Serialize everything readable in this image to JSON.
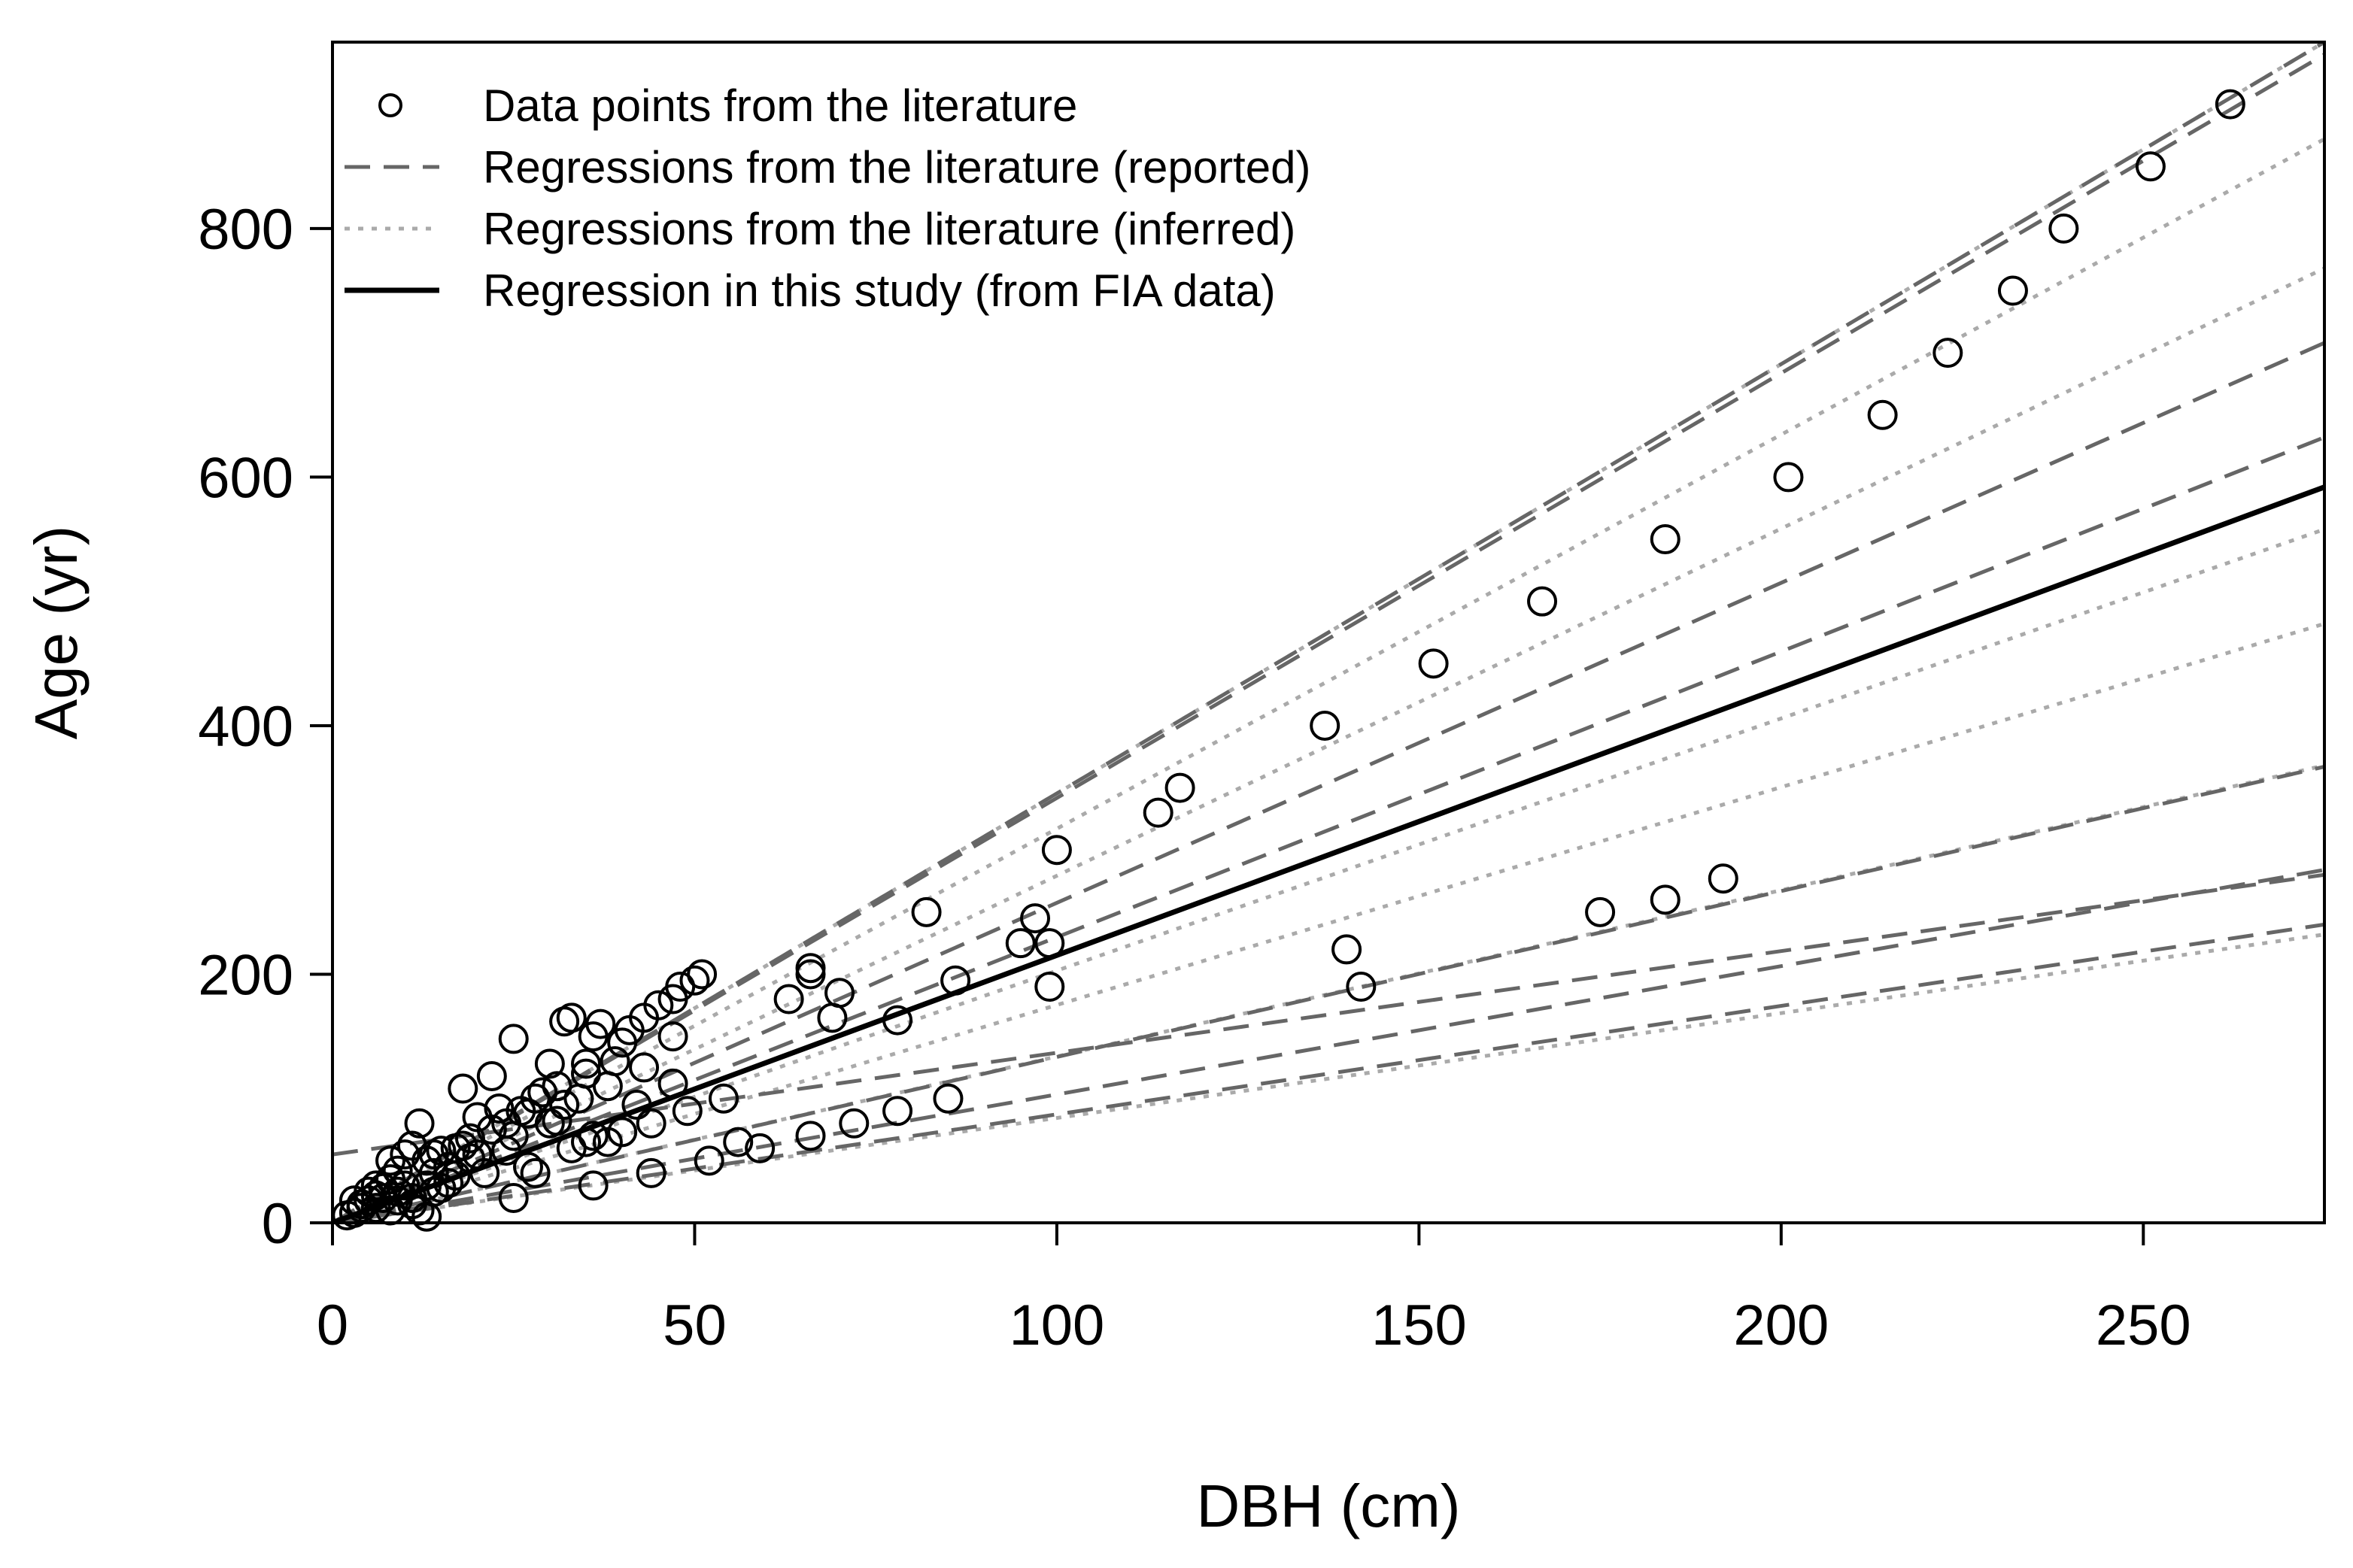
{
  "chart_data": {
    "type": "scatter",
    "xlabel": "DBH (cm)",
    "ylabel": "Age (yr)",
    "xlim": [
      0,
      275
    ],
    "ylim": [
      0,
      950
    ],
    "x_ticks": [
      0,
      50,
      100,
      150,
      200,
      250
    ],
    "y_ticks": [
      0,
      200,
      400,
      600,
      800
    ],
    "grid": false,
    "legend_position": "top-left",
    "legend": [
      {
        "label": "Data points from the literature",
        "style": "circle",
        "color": "#000000"
      },
      {
        "label": "Regressions from the literature (reported)",
        "style": "dashed",
        "color": "#666666"
      },
      {
        "label": "Regressions from the literature (inferred)",
        "style": "dotted",
        "color": "#aaaaaa"
      },
      {
        "label": "Regression in this study (from FIA data)",
        "style": "solid",
        "color": "#000000"
      }
    ],
    "points": [
      [
        262,
        900
      ],
      [
        251,
        850
      ],
      [
        239,
        800
      ],
      [
        232,
        750
      ],
      [
        223,
        700
      ],
      [
        214,
        650
      ],
      [
        201,
        600
      ],
      [
        184,
        550
      ],
      [
        167,
        500
      ],
      [
        152,
        450
      ],
      [
        137,
        400
      ],
      [
        117,
        350
      ],
      [
        114,
        330
      ],
      [
        100,
        300
      ],
      [
        82,
        250
      ],
      [
        97,
        245
      ],
      [
        95,
        225
      ],
      [
        99,
        225
      ],
      [
        99,
        190
      ],
      [
        86,
        195
      ],
      [
        66,
        205
      ],
      [
        66,
        200
      ],
      [
        63,
        180
      ],
      [
        70,
        185
      ],
      [
        69,
        165
      ],
      [
        78,
        163
      ],
      [
        54,
        100
      ],
      [
        51,
        200
      ],
      [
        50,
        195
      ],
      [
        48,
        190
      ],
      [
        47,
        180
      ],
      [
        45,
        175
      ],
      [
        43,
        165
      ],
      [
        41,
        155
      ],
      [
        40,
        145
      ],
      [
        47,
        150
      ],
      [
        47,
        112
      ],
      [
        49,
        90
      ],
      [
        44,
        80
      ],
      [
        85,
        100
      ],
      [
        78,
        90
      ],
      [
        72,
        80
      ],
      [
        66,
        70
      ],
      [
        59,
        60
      ],
      [
        56,
        65
      ],
      [
        52,
        50
      ],
      [
        44,
        40
      ],
      [
        36,
        30
      ],
      [
        25,
        20
      ],
      [
        175,
        250
      ],
      [
        184,
        260
      ],
      [
        192,
        277
      ],
      [
        140,
        220
      ],
      [
        142,
        190
      ],
      [
        33,
        165
      ],
      [
        32,
        162
      ],
      [
        37,
        160
      ],
      [
        36,
        150
      ],
      [
        25,
        148
      ],
      [
        18,
        108
      ],
      [
        22,
        118
      ],
      [
        30,
        128
      ],
      [
        35,
        128
      ],
      [
        35,
        120
      ],
      [
        31,
        110
      ],
      [
        29,
        105
      ],
      [
        28,
        100
      ],
      [
        32,
        95
      ],
      [
        27,
        88
      ],
      [
        26,
        90
      ],
      [
        20,
        85
      ],
      [
        22,
        75
      ],
      [
        19,
        68
      ],
      [
        18,
        62
      ],
      [
        15,
        58
      ],
      [
        14,
        55
      ],
      [
        13,
        50
      ],
      [
        12,
        80
      ],
      [
        11,
        62
      ],
      [
        10,
        55
      ],
      [
        8,
        50
      ],
      [
        9,
        42
      ],
      [
        8,
        35
      ],
      [
        7,
        28
      ],
      [
        6,
        22
      ],
      [
        5,
        18
      ],
      [
        4,
        12
      ],
      [
        3,
        8
      ],
      [
        2,
        6
      ],
      [
        6,
        30
      ],
      [
        5,
        25
      ],
      [
        7,
        20
      ],
      [
        9,
        18
      ],
      [
        11,
        15
      ],
      [
        12,
        10
      ],
      [
        13,
        5
      ],
      [
        14,
        25
      ],
      [
        15,
        28
      ],
      [
        16,
        32
      ],
      [
        17,
        38
      ],
      [
        21,
        40
      ],
      [
        24,
        58
      ],
      [
        27,
        45
      ],
      [
        28,
        40
      ],
      [
        33,
        60
      ],
      [
        35,
        65
      ],
      [
        36,
        70
      ],
      [
        38,
        65
      ],
      [
        40,
        73
      ],
      [
        42,
        95
      ],
      [
        38,
        110
      ],
      [
        39,
        130
      ],
      [
        43,
        125
      ],
      [
        25,
        70
      ],
      [
        24,
        80
      ],
      [
        23,
        92
      ],
      [
        30,
        80
      ],
      [
        31,
        82
      ],
      [
        34,
        100
      ],
      [
        20,
        55
      ],
      [
        16,
        45
      ],
      [
        10,
        30
      ],
      [
        9,
        25
      ],
      [
        4,
        15
      ],
      [
        3,
        18
      ],
      [
        6,
        12
      ],
      [
        8,
        10
      ],
      [
        11,
        20
      ],
      [
        13,
        30
      ],
      [
        14,
        40
      ],
      [
        17,
        60
      ],
      [
        19,
        52
      ]
    ],
    "regressions_reported": [
      {
        "x_end": 275,
        "values": [
          0,
          950
        ]
      },
      {
        "x_end": 275,
        "values": [
          0,
          940
        ]
      },
      {
        "x_end": 275,
        "values": [
          0,
          708
        ]
      },
      {
        "x_end": 275,
        "values": [
          0,
          632
        ]
      },
      {
        "x_end": 275,
        "values": [
          0,
          367
        ]
      },
      {
        "x_end": 275,
        "values": [
          0,
          284
        ]
      },
      {
        "x_end": 275,
        "values": [
          0,
          240
        ]
      },
      {
        "x_end": 275,
        "values": [
          55,
          280
        ]
      }
    ],
    "regressions_inferred": [
      {
        "x_end": 275,
        "values": [
          0,
          950
        ]
      },
      {
        "x_end": 275,
        "values": [
          0,
          872
        ]
      },
      {
        "x_end": 275,
        "values": [
          0,
          768
        ]
      },
      {
        "x_end": 275,
        "values": [
          0,
          558
        ]
      },
      {
        "x_end": 275,
        "values": [
          0,
          482
        ]
      },
      {
        "x_end": 275,
        "values": [
          0,
          368
        ]
      },
      {
        "x_end": 275,
        "values": [
          0,
          232
        ]
      }
    ],
    "regression_this_study": {
      "x_end": 275,
      "values": [
        0,
        592
      ]
    }
  }
}
